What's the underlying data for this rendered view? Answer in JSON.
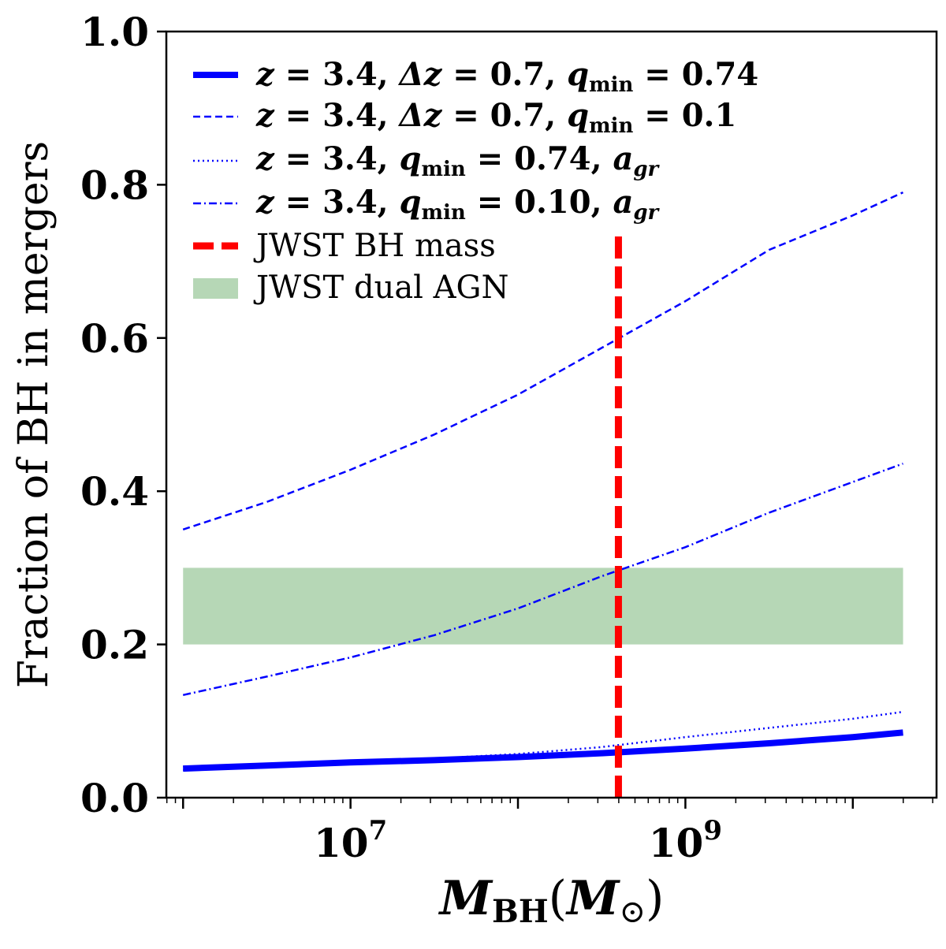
{
  "chart_data": {
    "type": "line",
    "title": "",
    "xlabel": "M_BH(M_⊙)",
    "xlabel_parts": {
      "main": "M",
      "sub": "BH",
      "open": "(",
      "inner": "M",
      "inner_sub": "⊙",
      "close": ")"
    },
    "ylabel": "Fraction of BH in mergers",
    "xscale": "log",
    "xlim_log10": [
      5.9,
      10.5
    ],
    "ylim": [
      0.0,
      1.0
    ],
    "grid": false,
    "legend_placement": "top-left",
    "y_ticks": [
      {
        "value": 0.0,
        "label": "0.0"
      },
      {
        "value": 0.2,
        "label": "0.2"
      },
      {
        "value": 0.4,
        "label": "0.4"
      },
      {
        "value": 0.6,
        "label": "0.6"
      },
      {
        "value": 0.8,
        "label": "0.8"
      },
      {
        "value": 1.0,
        "label": "1.0"
      }
    ],
    "x_ticks": [
      {
        "log10": 7,
        "base": "10",
        "exp": "7"
      },
      {
        "log10": 9,
        "base": "10",
        "exp": "9"
      }
    ],
    "x_log10": [
      6.0,
      6.5,
      7.0,
      7.5,
      8.0,
      8.5,
      9.0,
      9.5,
      10.0,
      10.3
    ],
    "series": [
      {
        "name": "z = 3.4, Δz = 0.7, q_min = 0.74",
        "legend": {
          "a": "z",
          "b": " = 3.4, ",
          "c": "Δz",
          "d": " = 0.7, ",
          "e": "q",
          "f": "min",
          "g": " = 0.74",
          "h": "",
          "i": ""
        },
        "style": "solid-thick",
        "color": "#0000ff",
        "values": [
          0.038,
          0.042,
          0.046,
          0.049,
          0.053,
          0.058,
          0.064,
          0.071,
          0.079,
          0.085
        ]
      },
      {
        "name": "z = 3.4, Δz = 0.7, q_min = 0.1",
        "legend": {
          "a": "z",
          "b": " = 3.4, ",
          "c": "Δz",
          "d": " = 0.7, ",
          "e": "q",
          "f": "min",
          "g": " = 0.1",
          "h": "",
          "i": ""
        },
        "style": "dashed",
        "color": "#0000ff",
        "values": [
          0.35,
          0.386,
          0.428,
          0.474,
          0.526,
          0.587,
          0.648,
          0.715,
          0.76,
          0.79
        ]
      },
      {
        "name": "z = 3.4, q_min = 0.74, a_gr",
        "legend": {
          "a": "z",
          "b": " = 3.4, ",
          "c": "",
          "d": "",
          "e": "q",
          "f": "min",
          "g": " = 0.74, ",
          "h": "a",
          "i": "gr"
        },
        "style": "dotted",
        "color": "#0000ff",
        "values": [
          0.036,
          0.041,
          0.046,
          0.051,
          0.057,
          0.066,
          0.079,
          0.091,
          0.103,
          0.112
        ]
      },
      {
        "name": "z = 3.4, q_min = 0.10, a_gr",
        "legend": {
          "a": "z",
          "b": " = 3.4, ",
          "c": "",
          "d": "",
          "e": "q",
          "f": "min",
          "g": " = 0.10, ",
          "h": "a",
          "i": "gr"
        },
        "style": "dashdot",
        "color": "#0000ff",
        "values": [
          0.134,
          0.158,
          0.183,
          0.212,
          0.247,
          0.289,
          0.327,
          0.372,
          0.412,
          0.436
        ]
      }
    ],
    "vertical_line": {
      "name": "JWST BH mass",
      "x_log10": 8.6,
      "color": "#ff0000",
      "style": "dashed-thick"
    },
    "band": {
      "name": "JWST dual AGN",
      "y_range": [
        0.2,
        0.3
      ],
      "x_log10_range": [
        6.0,
        10.3
      ],
      "color": "#2e8b2e"
    }
  }
}
